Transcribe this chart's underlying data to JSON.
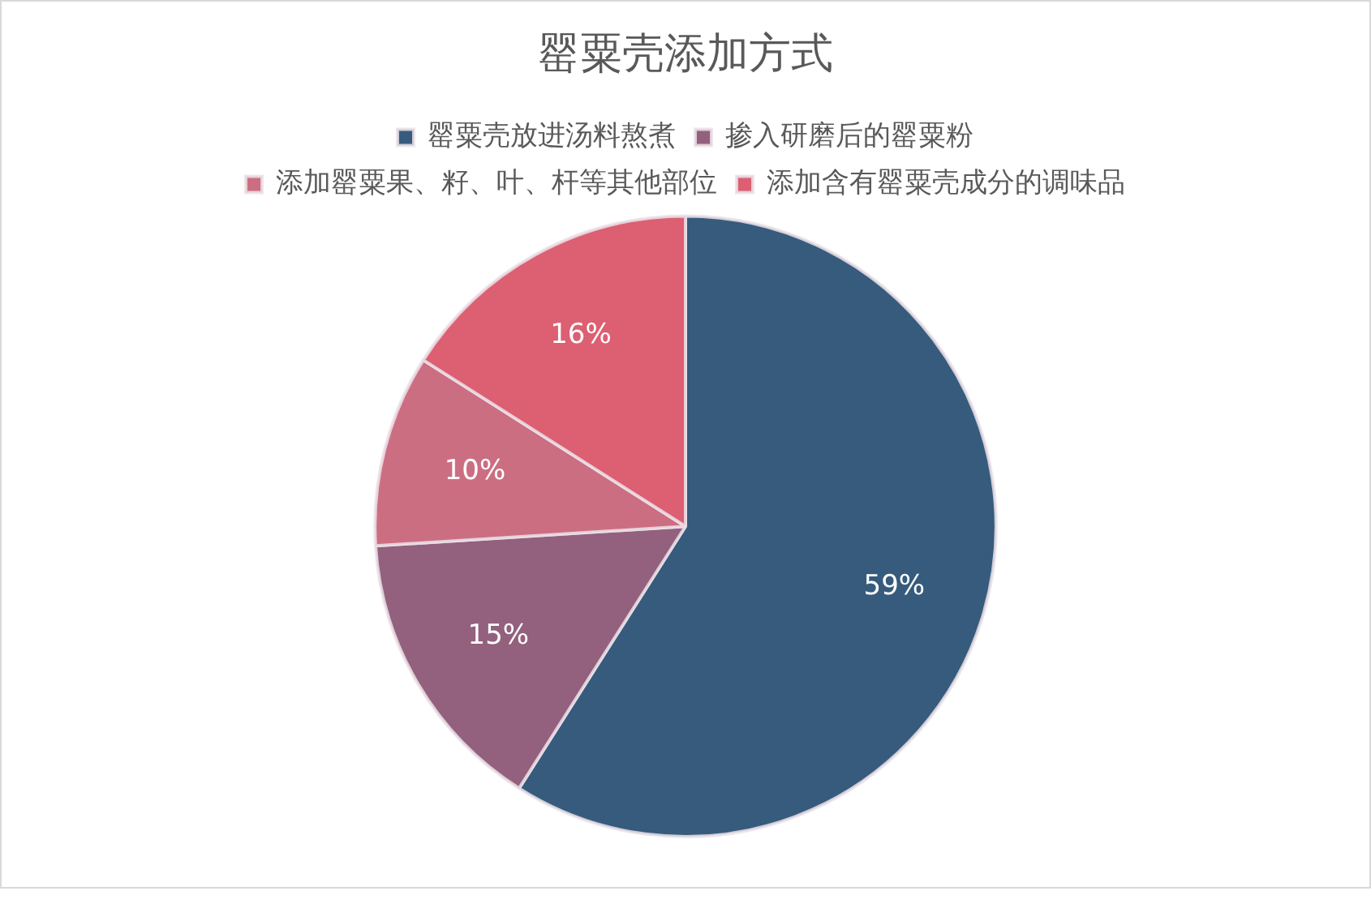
{
  "chart_data": {
    "type": "pie",
    "title": "罂粟壳添加方式",
    "categories": [
      "罂粟壳放进汤料熬煮",
      "掺入研磨后的罂粟粉",
      "添加罂粟果、籽、叶、杆等其他部位",
      "添加含有罂粟壳成分的调味品"
    ],
    "values": [
      59,
      15,
      10,
      16
    ],
    "colors": [
      "#365b7c",
      "#93607e",
      "#cc6e82",
      "#dc5f72"
    ],
    "value_labels": [
      "59%",
      "15%",
      "10%",
      "16%"
    ],
    "legend": "top"
  }
}
